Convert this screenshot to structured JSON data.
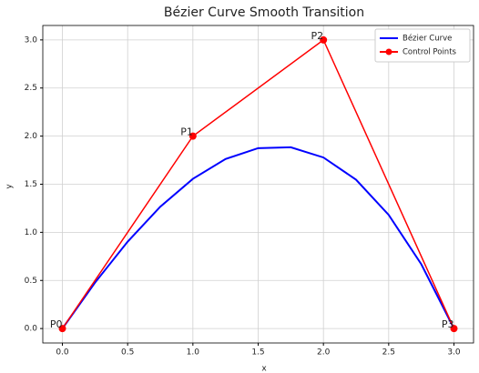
{
  "chart_data": {
    "type": "line",
    "title": "Bézier Curve Smooth Transition",
    "x_label": "x",
    "y_label": "y",
    "series": [
      {
        "name": "Bézier Curve",
        "color": "#0000ff",
        "marker": false,
        "x": [
          0,
          0.25,
          0.5,
          0.75,
          1,
          1.25,
          1.5,
          1.75,
          2,
          2.25,
          2.5,
          2.75,
          3
        ],
        "values": [
          0,
          0.477,
          0.903,
          1.266,
          1.556,
          1.762,
          1.875,
          1.884,
          1.778,
          1.547,
          1.181,
          0.668,
          0
        ]
      },
      {
        "name": "Control Points",
        "color": "#ff0000",
        "marker": true,
        "x": [
          0,
          1,
          2,
          3
        ],
        "values": [
          0,
          2,
          3,
          0
        ]
      }
    ],
    "annotations": [
      {
        "text": "P0",
        "x": 0,
        "y": 0
      },
      {
        "text": "P1",
        "x": 1,
        "y": 2
      },
      {
        "text": "P2",
        "x": 2,
        "y": 3
      },
      {
        "text": "P3",
        "x": 3,
        "y": 0
      }
    ],
    "xlim": [
      -0.15,
      3.15
    ],
    "ylim": [
      -0.15,
      3.15
    ],
    "xticks": [
      {
        "value": 0,
        "label": "0.0"
      },
      0.5,
      {
        "value": 1,
        "label": "1.0"
      },
      1.5,
      {
        "value": 2,
        "label": "2.0"
      },
      2.5,
      {
        "value": 3,
        "label": "3.0"
      }
    ],
    "yticks": [
      {
        "value": 0,
        "label": "0.0"
      },
      0.5,
      {
        "value": 1,
        "label": "1.0"
      },
      1.5,
      {
        "value": 2,
        "label": "2.0"
      },
      2.5,
      {
        "value": 3,
        "label": "3.0"
      }
    ],
    "grid": true,
    "legend": "upper right"
  }
}
